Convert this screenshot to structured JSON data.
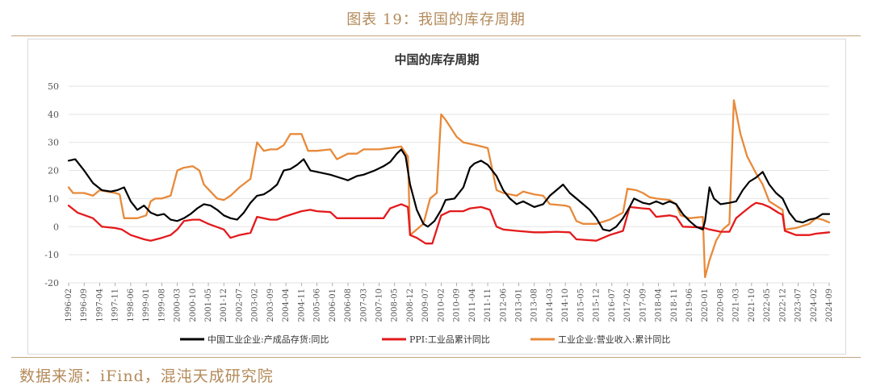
{
  "figure": {
    "title": "图表 19：我国的库存周期",
    "source": "数据来源：iFind，混沌天成研究院"
  },
  "colors": {
    "inventory": "#000000",
    "ppi": "#e31a1c",
    "revenue": "#e8893a",
    "accent": "#b38a5a"
  },
  "chart_data": {
    "type": "line",
    "title": "中国的库存周期",
    "ylim": [
      -20,
      50
    ],
    "yticks": [
      -20,
      -10,
      0,
      10,
      20,
      30,
      40,
      50
    ],
    "x_ticks": [
      "1996-02",
      "1996-09",
      "1997-04",
      "1997-11",
      "1998-06",
      "1999-01",
      "1999-08",
      "2000-03",
      "2000-10",
      "2001-05",
      "2001-12",
      "2002-07",
      "2003-02",
      "2003-09",
      "2004-04",
      "2004-11",
      "2005-06",
      "2006-01",
      "2006-08",
      "2007-03",
      "2007-10",
      "2008-05",
      "2008-12",
      "2009-07",
      "2010-02",
      "2010-09",
      "2011-04",
      "2011-11",
      "2012-06",
      "2013-01",
      "2013-08",
      "2014-03",
      "2014-10",
      "2015-05",
      "2015-12",
      "2016-07",
      "2017-02",
      "2017-09",
      "2018-04",
      "2018-11",
      "2019-06",
      "2020-01",
      "2020-08",
      "2021-03",
      "2021-10",
      "2022-05",
      "2022-12",
      "2023-07",
      "2024-02",
      "2024-09"
    ],
    "x_range": [
      "1996-02",
      "2024-09"
    ],
    "grid": true,
    "legend": "bottom",
    "series": [
      {
        "name": "中国工业企业:产成品存货:同比",
        "key": "inventory",
        "points": [
          [
            "1996-02",
            23.5
          ],
          [
            "1996-05",
            24
          ],
          [
            "1996-09",
            20
          ],
          [
            "1997-01",
            15.5
          ],
          [
            "1997-05",
            13
          ],
          [
            "1997-09",
            12.5
          ],
          [
            "1997-12",
            13
          ],
          [
            "1998-03",
            14
          ],
          [
            "1998-06",
            9
          ],
          [
            "1998-09",
            6
          ],
          [
            "1998-12",
            7.5
          ],
          [
            "1999-03",
            5
          ],
          [
            "1999-06",
            4
          ],
          [
            "1999-09",
            4.5
          ],
          [
            "1999-12",
            2.5
          ],
          [
            "2000-03",
            2
          ],
          [
            "2000-06",
            3
          ],
          [
            "2000-09",
            4.5
          ],
          [
            "2000-12",
            6.5
          ],
          [
            "2001-03",
            8
          ],
          [
            "2001-06",
            7.5
          ],
          [
            "2001-09",
            6
          ],
          [
            "2001-12",
            4
          ],
          [
            "2002-03",
            3
          ],
          [
            "2002-06",
            2.5
          ],
          [
            "2002-09",
            5
          ],
          [
            "2002-12",
            8.5
          ],
          [
            "2003-03",
            11
          ],
          [
            "2003-06",
            11.5
          ],
          [
            "2003-09",
            13
          ],
          [
            "2003-12",
            15
          ],
          [
            "2004-03",
            20
          ],
          [
            "2004-06",
            20.5
          ],
          [
            "2004-09",
            22
          ],
          [
            "2004-12",
            24
          ],
          [
            "2005-03",
            20
          ],
          [
            "2005-06",
            19.5
          ],
          [
            "2005-12",
            18.5
          ],
          [
            "2006-06",
            17
          ],
          [
            "2006-08",
            16.5
          ],
          [
            "2006-12",
            18
          ],
          [
            "2007-03",
            18.5
          ],
          [
            "2007-08",
            20
          ],
          [
            "2007-12",
            21.5
          ],
          [
            "2008-03",
            23
          ],
          [
            "2008-06",
            26
          ],
          [
            "2008-08",
            27.5
          ],
          [
            "2008-10",
            25
          ],
          [
            "2008-12",
            15
          ],
          [
            "2009-03",
            6
          ],
          [
            "2009-06",
            1
          ],
          [
            "2009-08",
            0
          ],
          [
            "2009-11",
            2
          ],
          [
            "2010-02",
            6
          ],
          [
            "2010-04",
            9.5
          ],
          [
            "2010-08",
            10
          ],
          [
            "2010-12",
            14
          ],
          [
            "2011-03",
            21
          ],
          [
            "2011-05",
            22.5
          ],
          [
            "2011-08",
            23.5
          ],
          [
            "2011-11",
            22
          ],
          [
            "2012-03",
            18
          ],
          [
            "2012-06",
            13
          ],
          [
            "2012-09",
            10
          ],
          [
            "2012-12",
            8
          ],
          [
            "2013-03",
            9
          ],
          [
            "2013-08",
            7
          ],
          [
            "2013-12",
            8
          ],
          [
            "2014-03",
            11
          ],
          [
            "2014-06",
            13
          ],
          [
            "2014-09",
            15
          ],
          [
            "2014-12",
            12
          ],
          [
            "2015-03",
            10
          ],
          [
            "2015-06",
            8
          ],
          [
            "2015-09",
            6
          ],
          [
            "2015-12",
            3
          ],
          [
            "2016-03",
            -1
          ],
          [
            "2016-06",
            -1.5
          ],
          [
            "2016-09",
            0
          ],
          [
            "2016-12",
            3
          ],
          [
            "2017-03",
            7
          ],
          [
            "2017-05",
            10
          ],
          [
            "2017-09",
            8.5
          ],
          [
            "2017-12",
            8
          ],
          [
            "2018-03",
            9
          ],
          [
            "2018-06",
            8
          ],
          [
            "2018-09",
            9
          ],
          [
            "2018-12",
            8
          ],
          [
            "2019-03",
            4.5
          ],
          [
            "2019-06",
            2
          ],
          [
            "2019-09",
            0
          ],
          [
            "2019-12",
            -1
          ],
          [
            "2020-01",
            2
          ],
          [
            "2020-03",
            14
          ],
          [
            "2020-05",
            10
          ],
          [
            "2020-08",
            8
          ],
          [
            "2020-12",
            8.5
          ],
          [
            "2021-03",
            9
          ],
          [
            "2021-06",
            13
          ],
          [
            "2021-09",
            16
          ],
          [
            "2021-12",
            17.5
          ],
          [
            "2022-03",
            19.5
          ],
          [
            "2022-06",
            15
          ],
          [
            "2022-09",
            12
          ],
          [
            "2022-12",
            10
          ],
          [
            "2023-03",
            5
          ],
          [
            "2023-06",
            2
          ],
          [
            "2023-09",
            1.5
          ],
          [
            "2023-12",
            2.5
          ],
          [
            "2024-03",
            3
          ],
          [
            "2024-06",
            4.5
          ],
          [
            "2024-09",
            4.5
          ]
        ]
      },
      {
        "name": "PPI:工业品累计同比",
        "key": "ppi",
        "points": [
          [
            "1996-02",
            7.5
          ],
          [
            "1996-06",
            5
          ],
          [
            "1997-01",
            3
          ],
          [
            "1997-05",
            0
          ],
          [
            "1997-11",
            -0.5
          ],
          [
            "1998-02",
            -1
          ],
          [
            "1998-06",
            -3
          ],
          [
            "1998-12",
            -4.5
          ],
          [
            "1999-03",
            -5
          ],
          [
            "1999-08",
            -4
          ],
          [
            "1999-12",
            -3
          ],
          [
            "2000-03",
            -1
          ],
          [
            "2000-06",
            2
          ],
          [
            "2000-10",
            2.5
          ],
          [
            "2001-01",
            2.5
          ],
          [
            "2001-05",
            1
          ],
          [
            "2001-12",
            -1
          ],
          [
            "2002-03",
            -4
          ],
          [
            "2002-07",
            -3
          ],
          [
            "2002-12",
            -2.2
          ],
          [
            "2003-03",
            3.5
          ],
          [
            "2003-09",
            2.5
          ],
          [
            "2003-12",
            2.5
          ],
          [
            "2004-03",
            3.5
          ],
          [
            "2004-11",
            5.5
          ],
          [
            "2005-03",
            6
          ],
          [
            "2005-06",
            5.5
          ],
          [
            "2005-12",
            5.2
          ],
          [
            "2006-03",
            3
          ],
          [
            "2006-08",
            3
          ],
          [
            "2006-12",
            3
          ],
          [
            "2007-03",
            3
          ],
          [
            "2007-12",
            3
          ],
          [
            "2008-03",
            6.5
          ],
          [
            "2008-08",
            8
          ],
          [
            "2008-11",
            7
          ],
          [
            "2008-12",
            -3
          ],
          [
            "2009-03",
            -4
          ],
          [
            "2009-07",
            -6
          ],
          [
            "2009-10",
            -6
          ],
          [
            "2010-02",
            4
          ],
          [
            "2010-06",
            5.5
          ],
          [
            "2010-12",
            5.5
          ],
          [
            "2011-03",
            6.5
          ],
          [
            "2011-08",
            7
          ],
          [
            "2011-12",
            6
          ],
          [
            "2012-03",
            0
          ],
          [
            "2012-06",
            -1
          ],
          [
            "2012-12",
            -1.5
          ],
          [
            "2013-08",
            -2
          ],
          [
            "2013-12",
            -2
          ],
          [
            "2014-06",
            -1.8
          ],
          [
            "2014-12",
            -2
          ],
          [
            "2015-03",
            -4.5
          ],
          [
            "2015-12",
            -5
          ],
          [
            "2016-06",
            -3
          ],
          [
            "2016-12",
            -1.5
          ],
          [
            "2017-03",
            7
          ],
          [
            "2017-09",
            6.5
          ],
          [
            "2017-12",
            6.3
          ],
          [
            "2018-03",
            3.5
          ],
          [
            "2018-09",
            4
          ],
          [
            "2018-12",
            3.5
          ],
          [
            "2019-03",
            0
          ],
          [
            "2019-12",
            -0.3
          ],
          [
            "2020-03",
            -1
          ],
          [
            "2020-08",
            -1.8
          ],
          [
            "2020-12",
            -1.8
          ],
          [
            "2021-03",
            3
          ],
          [
            "2021-06",
            5
          ],
          [
            "2021-10",
            7.5
          ],
          [
            "2021-12",
            8.5
          ],
          [
            "2022-03",
            8
          ],
          [
            "2022-06",
            7
          ],
          [
            "2022-10",
            5
          ],
          [
            "2022-12",
            4.2
          ],
          [
            "2023-01",
            -1.5
          ],
          [
            "2023-06",
            -3
          ],
          [
            "2023-12",
            -3
          ],
          [
            "2024-03",
            -2.5
          ],
          [
            "2024-09",
            -2
          ]
        ]
      },
      {
        "name": "工业企业:营业收入:累计同比",
        "key": "revenue",
        "points": [
          [
            "1996-02",
            14
          ],
          [
            "1996-04",
            12
          ],
          [
            "1996-09",
            12
          ],
          [
            "1997-01",
            11
          ],
          [
            "1997-04",
            13
          ],
          [
            "1997-11",
            12
          ],
          [
            "1998-01",
            11.5
          ],
          [
            "1998-03",
            3
          ],
          [
            "1998-09",
            3
          ],
          [
            "1999-01",
            4
          ],
          [
            "1999-03",
            9
          ],
          [
            "1999-05",
            10
          ],
          [
            "1999-08",
            10
          ],
          [
            "1999-12",
            11
          ],
          [
            "2000-03",
            20
          ],
          [
            "2000-06",
            21
          ],
          [
            "2000-10",
            21.5
          ],
          [
            "2001-01",
            20
          ],
          [
            "2001-03",
            15
          ],
          [
            "2001-09",
            10
          ],
          [
            "2001-12",
            9.5
          ],
          [
            "2002-03",
            11
          ],
          [
            "2002-07",
            14
          ],
          [
            "2002-12",
            17
          ],
          [
            "2003-03",
            30
          ],
          [
            "2003-06",
            27
          ],
          [
            "2003-09",
            27.5
          ],
          [
            "2003-12",
            27.5
          ],
          [
            "2004-03",
            29
          ],
          [
            "2004-06",
            33
          ],
          [
            "2004-11",
            33
          ],
          [
            "2005-02",
            27
          ],
          [
            "2005-06",
            27
          ],
          [
            "2005-12",
            27.5
          ],
          [
            "2006-03",
            24
          ],
          [
            "2006-08",
            26
          ],
          [
            "2006-12",
            26
          ],
          [
            "2007-03",
            27.5
          ],
          [
            "2007-10",
            27.5
          ],
          [
            "2008-03",
            28
          ],
          [
            "2008-08",
            28.5
          ],
          [
            "2008-11",
            25
          ],
          [
            "2008-12",
            -3
          ],
          [
            "2009-03",
            -1
          ],
          [
            "2009-06",
            1
          ],
          [
            "2009-09",
            10
          ],
          [
            "2009-12",
            12
          ],
          [
            "2010-02",
            40
          ],
          [
            "2010-04",
            38
          ],
          [
            "2010-09",
            32
          ],
          [
            "2010-12",
            30
          ],
          [
            "2011-06",
            29
          ],
          [
            "2011-11",
            28
          ],
          [
            "2012-03",
            13
          ],
          [
            "2012-06",
            12
          ],
          [
            "2012-12",
            11
          ],
          [
            "2013-03",
            12.5
          ],
          [
            "2013-08",
            11.5
          ],
          [
            "2013-12",
            11
          ],
          [
            "2014-03",
            8
          ],
          [
            "2014-10",
            7.5
          ],
          [
            "2014-12",
            7
          ],
          [
            "2015-03",
            2
          ],
          [
            "2015-06",
            1
          ],
          [
            "2015-12",
            1
          ],
          [
            "2016-06",
            2.5
          ],
          [
            "2016-12",
            5
          ],
          [
            "2017-02",
            13.5
          ],
          [
            "2017-06",
            13
          ],
          [
            "2017-09",
            12
          ],
          [
            "2017-12",
            10.5
          ],
          [
            "2018-03",
            10
          ],
          [
            "2018-09",
            9.5
          ],
          [
            "2018-12",
            8
          ],
          [
            "2019-02",
            4
          ],
          [
            "2019-06",
            3
          ],
          [
            "2019-12",
            3.5
          ],
          [
            "2020-01",
            -18
          ],
          [
            "2020-03",
            -12
          ],
          [
            "2020-06",
            -5
          ],
          [
            "2020-09",
            -1
          ],
          [
            "2020-12",
            1
          ],
          [
            "2021-02",
            45
          ],
          [
            "2021-05",
            33
          ],
          [
            "2021-08",
            25
          ],
          [
            "2021-12",
            19
          ],
          [
            "2022-03",
            15
          ],
          [
            "2022-06",
            9
          ],
          [
            "2022-12",
            6
          ],
          [
            "2023-01",
            -1
          ],
          [
            "2023-06",
            -0.5
          ],
          [
            "2023-12",
            1
          ],
          [
            "2024-03",
            3
          ],
          [
            "2024-06",
            2.5
          ],
          [
            "2024-09",
            1.5
          ]
        ]
      }
    ]
  }
}
